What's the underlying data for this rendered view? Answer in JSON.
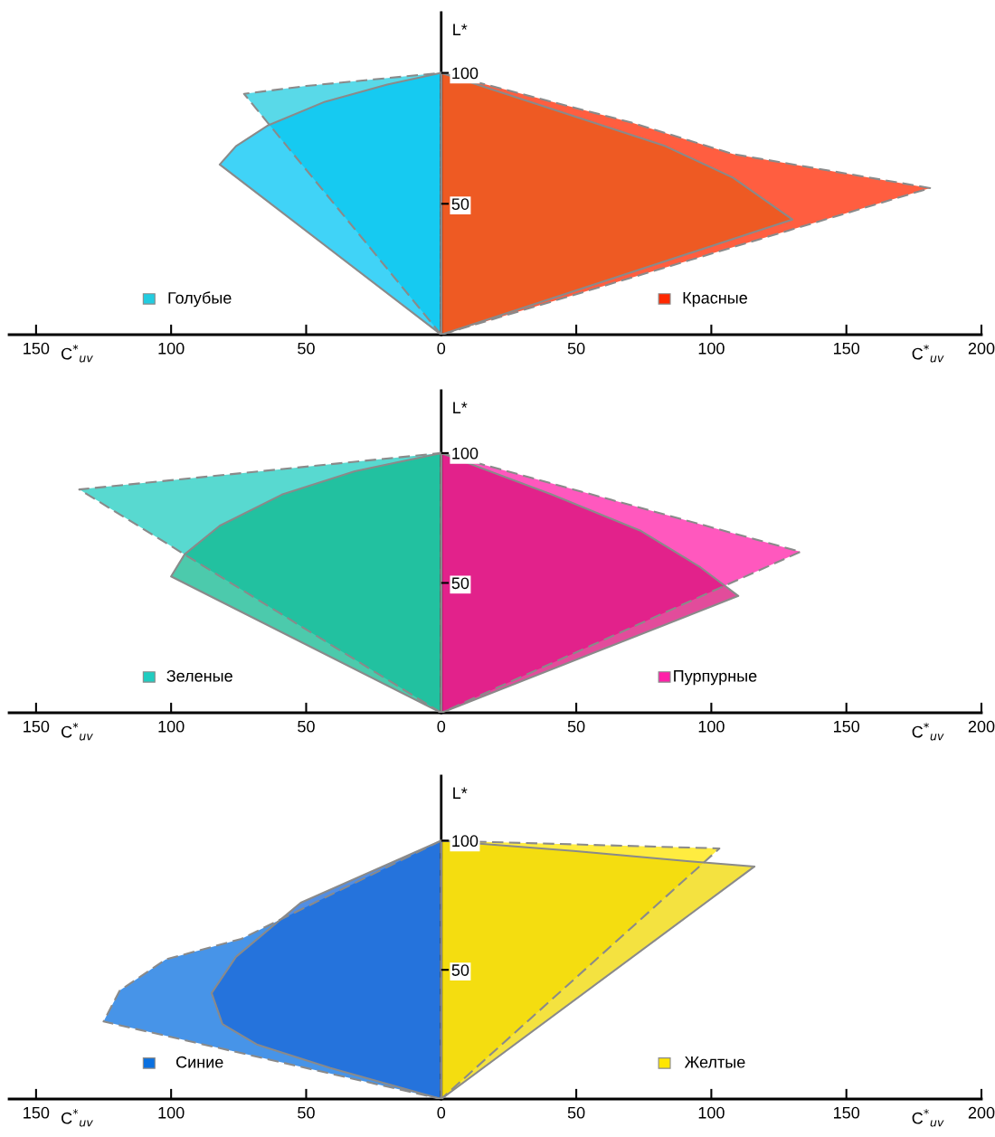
{
  "chart_data": [
    {
      "type": "area",
      "xlabel": "C$^{*}$$_{uv}$",
      "ylabel": "L*",
      "xlim": [
        -160,
        200
      ],
      "ylim": [
        0,
        123
      ],
      "legend": "bottom",
      "xticks": [
        {
          "value": -150,
          "label": "150"
        },
        {
          "value": -100,
          "label": "100"
        },
        {
          "value": -50,
          "label": "50"
        },
        0,
        50,
        100,
        150,
        200
      ],
      "yticks": [
        50,
        100
      ],
      "series": [
        {
          "name": "Голубые",
          "color": "#22cce0",
          "line_style": "dashed",
          "x": [
            0,
            -73,
            -50,
            -25,
            0,
            0
          ],
          "values": [
            0,
            92,
            95,
            97.5,
            100,
            0
          ]
        },
        {
          "color": "#00c4f4",
          "line_style": "solid",
          "x": [
            0,
            -82,
            -76,
            -64,
            -43,
            -20,
            0,
            0
          ],
          "values": [
            0,
            65,
            72,
            80,
            89,
            95.5,
            100,
            0
          ]
        },
        {
          "name": "Красные",
          "color": "#ff2800",
          "line_style": "dashed",
          "x": [
            0,
            70.5,
            108,
            181,
            0
          ],
          "values": [
            100,
            81,
            69,
            56,
            0
          ]
        },
        {
          "color": "#e85a1a",
          "line_style": "solid",
          "x": [
            0,
            83,
            108,
            130,
            0
          ],
          "values": [
            100,
            72,
            60,
            44,
            0
          ]
        }
      ]
    },
    {
      "type": "area",
      "xlabel": "C$^{*}$$_{uv}$",
      "ylabel": "L*",
      "xlim": [
        -160,
        200
      ],
      "ylim": [
        0,
        124
      ],
      "legend": "bottom",
      "xticks": [
        {
          "value": -150,
          "label": "150"
        },
        {
          "value": -100,
          "label": "100"
        },
        {
          "value": -50,
          "label": "50"
        },
        0,
        50,
        100,
        150,
        200
      ],
      "yticks": [
        50,
        100
      ],
      "series": [
        {
          "name": "Зеленые",
          "color": "#20ccc0",
          "line_style": "dashed",
          "x": [
            0,
            -134,
            0,
            0
          ],
          "values": [
            0,
            86,
            100,
            0
          ]
        },
        {
          "color": "#10b890",
          "line_style": "solid",
          "x": [
            0,
            -100,
            -95,
            -82,
            -59,
            -32,
            0,
            0
          ],
          "values": [
            0,
            52.5,
            61,
            72,
            84,
            93,
            100,
            0
          ]
        },
        {
          "name": "Пурпурные",
          "color": "#ff20a8",
          "line_style": "dashed",
          "x": [
            0,
            63,
            133,
            0
          ],
          "values": [
            100,
            82,
            62,
            0
          ]
        },
        {
          "color": "#d8107a",
          "line_style": "solid",
          "x": [
            0,
            41,
            74,
            96,
            110,
            0
          ],
          "values": [
            100,
            84,
            70,
            56,
            45,
            0
          ]
        }
      ]
    },
    {
      "type": "area",
      "xlabel": "C$^{*}$$_{uv}$",
      "ylabel": "L*",
      "xlim": [
        -160,
        200
      ],
      "ylim": [
        0,
        125
      ],
      "legend": "bottom",
      "xticks": [
        {
          "value": -150,
          "label": "150"
        },
        {
          "value": -100,
          "label": "100"
        },
        {
          "value": -50,
          "label": "50"
        },
        0,
        50,
        100,
        150,
        200
      ],
      "yticks": [
        50,
        100
      ],
      "series": [
        {
          "name": "Синие",
          "color": "#0a70e0",
          "line_style": "dashed",
          "x": [
            0,
            -41,
            -74,
            -102,
            -119,
            -125,
            0,
            0
          ],
          "values": [
            100,
            79,
            62,
            54,
            42,
            30,
            0,
            100
          ]
        },
        {
          "color": "#1a68d8",
          "line_style": "solid",
          "x": [
            0,
            -52,
            -76,
            -85,
            -81,
            -68,
            -41,
            0,
            0
          ],
          "values": [
            100,
            76,
            55,
            41,
            29,
            21,
            12,
            0,
            100
          ]
        },
        {
          "name": "Желтые",
          "color": "#ffe600",
          "line_style": "dashed",
          "x": [
            0,
            103,
            0
          ],
          "values": [
            100,
            97,
            0
          ]
        },
        {
          "color": "#f0d800",
          "line_style": "solid",
          "x": [
            0,
            49,
            92,
            116,
            0
          ],
          "values": [
            100,
            96,
            92,
            90,
            0
          ]
        }
      ]
    }
  ]
}
